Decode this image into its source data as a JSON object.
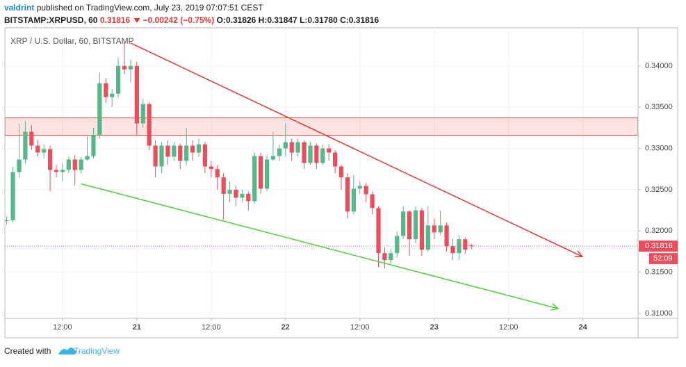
{
  "header": {
    "author": "valdrint",
    "published": "published on TradingView.com, July 23, 2019 07:07:51 CEST",
    "symbol": "BITSTAMP:XRPUSD, 60",
    "price": "0.31816",
    "change": "−0.00242 (−0.75%)",
    "ohlc": [
      "O:0.31826",
      "H:0.31847",
      "L:0.31780",
      "C:0.31816"
    ]
  },
  "footer": {
    "created_with": "Created with",
    "brand": "TradingView"
  },
  "chart_data": {
    "type": "candlestick",
    "title": "XRP / U.S. Dollar, 60, BITSTAMP",
    "up_color": "#53b987",
    "down_color": "#eb4d5c",
    "grid": true,
    "countdown": "52:09",
    "xlim": [
      2.7,
      104.9
    ],
    "ylim": [
      0.30941,
      0.34462
    ],
    "xticks": [
      {
        "value": 12,
        "label": "12:00"
      },
      {
        "value": 24,
        "label": "21"
      },
      {
        "value": 36,
        "label": "12:00"
      },
      {
        "value": 48,
        "label": "22"
      },
      {
        "value": 60,
        "label": "12:00"
      },
      {
        "value": 72,
        "label": "23"
      },
      {
        "value": 84,
        "label": "12:00"
      },
      {
        "value": 96,
        "label": "24"
      }
    ],
    "yticks": [
      {
        "value": 0.31,
        "label": "0.31000"
      },
      {
        "value": 0.315,
        "label": "0.31500"
      },
      {
        "value": 0.32,
        "label": "0.32000"
      },
      {
        "value": 0.325,
        "label": "0.32500"
      },
      {
        "value": 0.33,
        "label": "0.33000"
      },
      {
        "value": 0.335,
        "label": "0.33500"
      },
      {
        "value": 0.34,
        "label": "0.34000"
      }
    ],
    "x": [
      3,
      4,
      5,
      6,
      7,
      8,
      9,
      10,
      11,
      12,
      13,
      14,
      15,
      16,
      17,
      18,
      19,
      20,
      21,
      22,
      23,
      24,
      25,
      26,
      27,
      28,
      29,
      30,
      31,
      32,
      33,
      34,
      35,
      36,
      37,
      38,
      39,
      40,
      41,
      42,
      43,
      44,
      45,
      46,
      47,
      48,
      49,
      50,
      51,
      52,
      53,
      54,
      55,
      56,
      57,
      58,
      59,
      60,
      61,
      62,
      63,
      64,
      65,
      66,
      67,
      68,
      69,
      70,
      71,
      72,
      73,
      74,
      75,
      76,
      77,
      78
    ],
    "open": [
      0.3212,
      0.3213,
      0.32714,
      0.32866,
      0.33202,
      0.33034,
      0.3295,
      0.32992,
      0.32739,
      0.32714,
      0.3274,
      0.32866,
      0.32739,
      0.32866,
      0.32908,
      0.3316,
      0.3379,
      0.33622,
      0.33664,
      0.34,
      0.33958,
      0.34,
      0.33303,
      0.33538,
      0.33034,
      0.32782,
      0.33034,
      0.329,
      0.33034,
      0.3285,
      0.33034,
      0.3295,
      0.3305,
      0.32782,
      0.3275,
      0.3265,
      0.3245,
      0.325,
      0.32403,
      0.3245,
      0.32361,
      0.32908,
      0.32513,
      0.32866,
      0.32908,
      0.33,
      0.33076,
      0.3295,
      0.33076,
      0.32824,
      0.33034,
      0.32824,
      0.33,
      0.3295,
      0.32782,
      0.3265,
      0.32235,
      0.32513,
      0.32546,
      0.32445,
      0.32277,
      0.31731,
      0.31647,
      0.31731,
      0.3194,
      0.32235,
      0.31899,
      0.3225,
      0.31773,
      0.32067,
      0.31983,
      0.32067,
      0.31815,
      0.31731,
      0.31899,
      0.31826
    ],
    "high": [
      0.3218,
      0.3278,
      0.333,
      0.3333,
      0.3328,
      0.331,
      0.3305,
      0.3303,
      0.328,
      0.3282,
      0.329,
      0.3292,
      0.329,
      0.3315,
      0.3325,
      0.3392,
      0.3385,
      0.3372,
      0.341,
      0.34294,
      0.3408,
      0.3405,
      0.336,
      0.3356,
      0.331,
      0.3308,
      0.331,
      0.3308,
      0.3306,
      0.3325,
      0.331,
      0.3312,
      0.3308,
      0.3285,
      0.328,
      0.327,
      0.326,
      0.3255,
      0.325,
      0.3248,
      0.3295,
      0.3295,
      0.3292,
      0.332,
      0.3305,
      0.333,
      0.3312,
      0.3312,
      0.331,
      0.3308,
      0.3306,
      0.3305,
      0.3305,
      0.3298,
      0.328,
      0.327,
      0.3268,
      0.326,
      0.3258,
      0.3248,
      0.323,
      0.318,
      0.3178,
      0.3199,
      0.323,
      0.3225,
      0.323,
      0.3228,
      0.323,
      0.3215,
      0.3225,
      0.321,
      0.319,
      0.3195,
      0.3192,
      0.31847
    ],
    "low": [
      0.3208,
      0.321,
      0.3265,
      0.3282,
      0.3298,
      0.329,
      0.3288,
      0.3248,
      0.3265,
      0.326,
      0.327,
      0.3255,
      0.327,
      0.3285,
      0.3288,
      0.3312,
      0.3355,
      0.335,
      0.3362,
      0.339,
      0.338,
      0.3315,
      0.3325,
      0.3298,
      0.3265,
      0.327,
      0.328,
      0.3285,
      0.3275,
      0.328,
      0.3285,
      0.329,
      0.327,
      0.3265,
      0.325,
      0.3214,
      0.3235,
      0.323,
      0.3235,
      0.3225,
      0.3233,
      0.3245,
      0.3248,
      0.3285,
      0.3285,
      0.329,
      0.3285,
      0.329,
      0.3275,
      0.328,
      0.3275,
      0.328,
      0.3285,
      0.327,
      0.325,
      0.3215,
      0.322,
      0.3245,
      0.3235,
      0.322,
      0.3156,
      0.3155,
      0.316,
      0.3168,
      0.319,
      0.317,
      0.3185,
      0.317,
      0.3175,
      0.319,
      0.3195,
      0.3175,
      0.3165,
      0.3165,
      0.3172,
      0.3178
    ],
    "close": [
      0.3213,
      0.32714,
      0.32866,
      0.33202,
      0.33034,
      0.3295,
      0.32992,
      0.32739,
      0.32714,
      0.3274,
      0.32866,
      0.32739,
      0.32866,
      0.32908,
      0.3316,
      0.3379,
      0.33622,
      0.33664,
      0.34,
      0.33958,
      0.34,
      0.33303,
      0.33538,
      0.33034,
      0.32782,
      0.33034,
      0.329,
      0.33034,
      0.3285,
      0.33034,
      0.3295,
      0.3305,
      0.32782,
      0.3275,
      0.3265,
      0.3245,
      0.325,
      0.32403,
      0.3245,
      0.32361,
      0.32908,
      0.32513,
      0.32866,
      0.32908,
      0.33,
      0.33076,
      0.3295,
      0.33076,
      0.32824,
      0.33034,
      0.32824,
      0.33,
      0.3295,
      0.32782,
      0.3265,
      0.32235,
      0.32513,
      0.32546,
      0.32445,
      0.32277,
      0.31731,
      0.31647,
      0.31731,
      0.3194,
      0.32235,
      0.31899,
      0.3225,
      0.31773,
      0.32067,
      0.31983,
      0.32067,
      0.31815,
      0.31731,
      0.31899,
      0.31773,
      0.31816
    ],
    "zone": {
      "low": 0.3316,
      "high": 0.3337,
      "color": "#f44336"
    },
    "trendlines": [
      {
        "color": "#e53935",
        "x": [
          23,
          95.9
        ],
        "y": [
          0.34277,
          0.31689
        ]
      },
      {
        "color": "#4cd137",
        "x": [
          15,
          92
        ],
        "y": [
          0.32571,
          0.31059
        ]
      }
    ]
  }
}
